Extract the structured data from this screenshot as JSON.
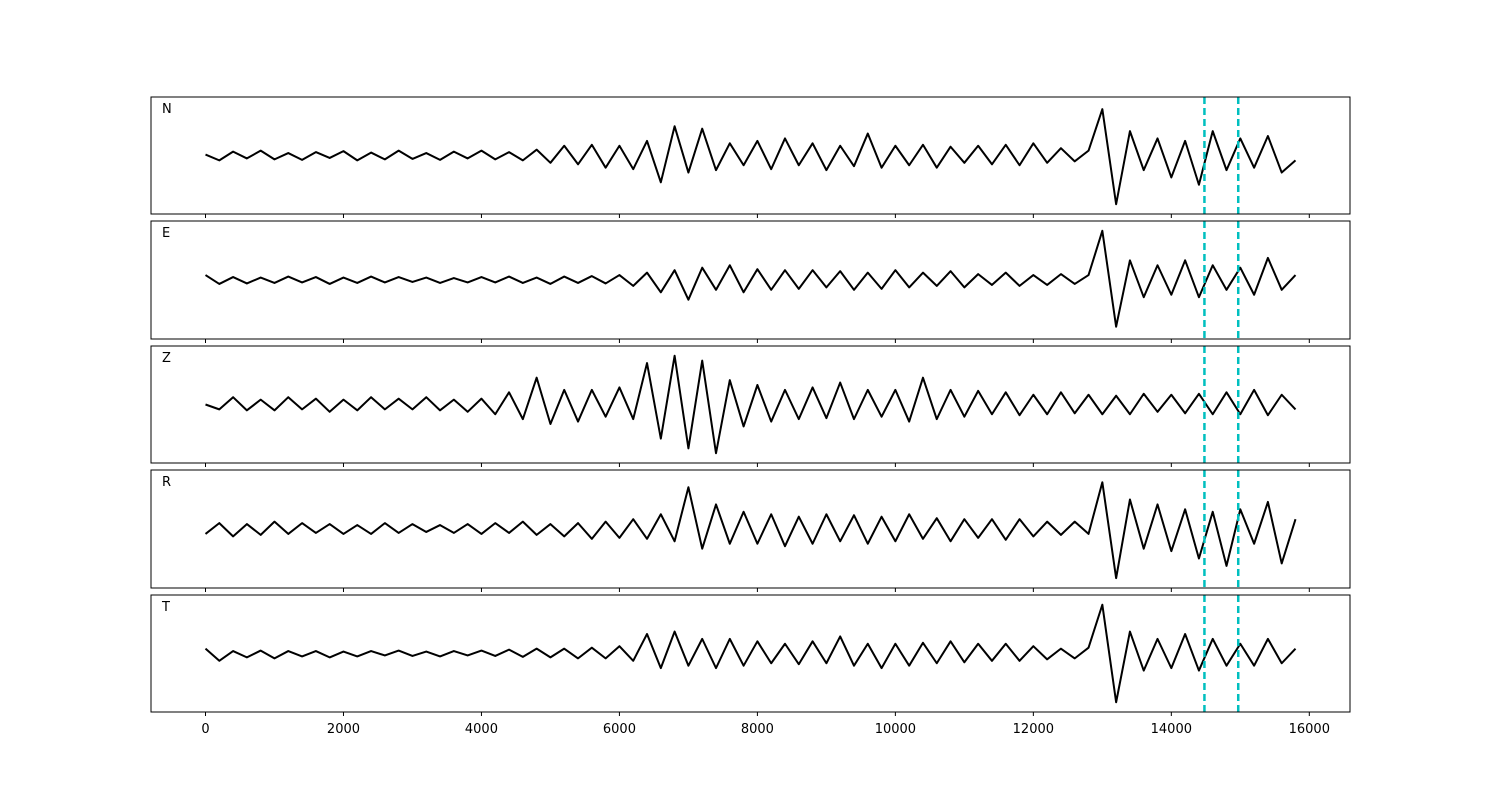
{
  "chart_data": {
    "type": "line",
    "layout": "stacked",
    "color": "#000000",
    "line_width": 2,
    "x": [
      0,
      200,
      400,
      600,
      800,
      1000,
      1200,
      1400,
      1600,
      1800,
      2000,
      2200,
      2400,
      2600,
      2800,
      3000,
      3200,
      3400,
      3600,
      3800,
      4000,
      4200,
      4400,
      4600,
      4800,
      5000,
      5200,
      5400,
      5600,
      5800,
      6000,
      6200,
      6400,
      6600,
      6800,
      7000,
      7200,
      7400,
      7600,
      7800,
      8000,
      8200,
      8400,
      8600,
      8800,
      9000,
      9200,
      9400,
      9600,
      9800,
      10000,
      10200,
      10400,
      10600,
      10800,
      11000,
      11200,
      11400,
      11600,
      11800,
      12000,
      12200,
      12400,
      12600,
      12800,
      13000,
      13200,
      13400,
      13600,
      13800,
      14000,
      14200,
      14400,
      14600,
      14800,
      15000,
      15200,
      15400,
      15600,
      15800
    ],
    "series": [
      {
        "name": "N",
        "values": [
          0.02,
          -0.1,
          0.08,
          -0.06,
          0.1,
          -0.08,
          0.05,
          -0.09,
          0.07,
          -0.05,
          0.09,
          -0.1,
          0.06,
          -0.08,
          0.1,
          -0.07,
          0.05,
          -0.09,
          0.08,
          -0.06,
          0.1,
          -0.08,
          0.07,
          -0.1,
          0.12,
          -0.15,
          0.2,
          -0.18,
          0.22,
          -0.25,
          0.2,
          -0.28,
          0.3,
          -0.55,
          0.6,
          -0.35,
          0.55,
          -0.3,
          0.25,
          -0.2,
          0.3,
          -0.28,
          0.35,
          -0.2,
          0.25,
          -0.3,
          0.2,
          -0.22,
          0.45,
          -0.25,
          0.2,
          -0.2,
          0.22,
          -0.25,
          0.18,
          -0.15,
          0.2,
          -0.18,
          0.22,
          -0.2,
          0.25,
          -0.15,
          0.15,
          -0.12,
          0.1,
          0.95,
          -1.0,
          0.5,
          -0.3,
          0.35,
          -0.45,
          0.3,
          -0.6,
          0.5,
          -0.3,
          0.35,
          -0.25,
          0.4,
          -0.35,
          -0.1
        ]
      },
      {
        "name": "E",
        "values": [
          0.1,
          -0.08,
          0.06,
          -0.07,
          0.05,
          -0.06,
          0.07,
          -0.05,
          0.06,
          -0.08,
          0.05,
          -0.06,
          0.07,
          -0.05,
          0.06,
          -0.04,
          0.05,
          -0.06,
          0.04,
          -0.05,
          0.06,
          -0.05,
          0.07,
          -0.06,
          0.05,
          -0.08,
          0.07,
          -0.06,
          0.08,
          -0.07,
          0.1,
          -0.12,
          0.15,
          -0.25,
          0.2,
          -0.4,
          0.25,
          -0.2,
          0.3,
          -0.25,
          0.22,
          -0.2,
          0.2,
          -0.18,
          0.2,
          -0.15,
          0.18,
          -0.2,
          0.15,
          -0.18,
          0.2,
          -0.15,
          0.15,
          -0.12,
          0.18,
          -0.15,
          0.12,
          -0.1,
          0.15,
          -0.12,
          0.1,
          -0.1,
          0.12,
          -0.08,
          0.1,
          1.0,
          -0.95,
          0.4,
          -0.35,
          0.3,
          -0.3,
          0.4,
          -0.35,
          0.3,
          -0.2,
          0.25,
          -0.3,
          0.45,
          -0.2,
          0.1
        ]
      },
      {
        "name": "Z",
        "values": [
          0.0,
          -0.1,
          0.15,
          -0.12,
          0.1,
          -0.12,
          0.15,
          -0.1,
          0.12,
          -0.15,
          0.1,
          -0.12,
          0.15,
          -0.1,
          0.12,
          -0.1,
          0.15,
          -0.12,
          0.1,
          -0.15,
          0.12,
          -0.2,
          0.25,
          -0.3,
          0.55,
          -0.4,
          0.3,
          -0.35,
          0.3,
          -0.25,
          0.35,
          -0.3,
          0.85,
          -0.7,
          1.0,
          -0.9,
          0.9,
          -1.0,
          0.5,
          -0.45,
          0.4,
          -0.35,
          0.3,
          -0.3,
          0.35,
          -0.28,
          0.45,
          -0.3,
          0.3,
          -0.25,
          0.3,
          -0.35,
          0.55,
          -0.3,
          0.3,
          -0.25,
          0.28,
          -0.2,
          0.25,
          -0.22,
          0.2,
          -0.2,
          0.25,
          -0.18,
          0.2,
          -0.2,
          0.18,
          -0.2,
          0.22,
          -0.15,
          0.2,
          -0.18,
          0.22,
          -0.2,
          0.25,
          -0.2,
          0.3,
          -0.22,
          0.2,
          -0.1
        ]
      },
      {
        "name": "R",
        "values": [
          -0.1,
          0.12,
          -0.15,
          0.1,
          -0.12,
          0.15,
          -0.1,
          0.12,
          -0.08,
          0.1,
          -0.1,
          0.08,
          -0.1,
          0.12,
          -0.08,
          0.1,
          -0.06,
          0.08,
          -0.08,
          0.1,
          -0.1,
          0.12,
          -0.08,
          0.15,
          -0.12,
          0.1,
          -0.15,
          0.12,
          -0.2,
          0.15,
          -0.18,
          0.2,
          -0.2,
          0.3,
          -0.25,
          0.85,
          -0.4,
          0.5,
          -0.3,
          0.35,
          -0.3,
          0.3,
          -0.35,
          0.25,
          -0.3,
          0.3,
          -0.25,
          0.28,
          -0.3,
          0.25,
          -0.25,
          0.3,
          -0.2,
          0.22,
          -0.25,
          0.2,
          -0.18,
          0.2,
          -0.22,
          0.2,
          -0.15,
          0.15,
          -0.12,
          0.15,
          -0.1,
          0.95,
          -1.0,
          0.6,
          -0.4,
          0.5,
          -0.45,
          0.4,
          -0.6,
          0.35,
          -0.75,
          0.4,
          -0.3,
          0.55,
          -0.7,
          0.2
        ]
      },
      {
        "name": "T",
        "values": [
          0.1,
          -0.15,
          0.05,
          -0.08,
          0.06,
          -0.1,
          0.05,
          -0.06,
          0.05,
          -0.08,
          0.04,
          -0.06,
          0.05,
          -0.04,
          0.06,
          -0.05,
          0.04,
          -0.06,
          0.05,
          -0.04,
          0.06,
          -0.05,
          0.08,
          -0.07,
          0.1,
          -0.08,
          0.1,
          -0.1,
          0.12,
          -0.1,
          0.15,
          -0.15,
          0.4,
          -0.3,
          0.45,
          -0.25,
          0.3,
          -0.3,
          0.3,
          -0.25,
          0.25,
          -0.2,
          0.2,
          -0.22,
          0.25,
          -0.2,
          0.35,
          -0.25,
          0.2,
          -0.3,
          0.2,
          -0.25,
          0.22,
          -0.2,
          0.25,
          -0.18,
          0.2,
          -0.15,
          0.2,
          -0.15,
          0.15,
          -0.12,
          0.1,
          -0.1,
          0.12,
          1.0,
          -1.0,
          0.45,
          -0.35,
          0.3,
          -0.3,
          0.4,
          -0.35,
          0.3,
          -0.25,
          0.2,
          -0.25,
          0.3,
          -0.2,
          0.1
        ]
      }
    ],
    "xlim": [
      -790,
      16590
    ],
    "xticks": [
      0,
      2000,
      4000,
      6000,
      8000,
      10000,
      12000,
      14000,
      16000
    ],
    "ylim": [
      -1.2,
      1.2
    ],
    "vlines": [
      14480,
      14970
    ],
    "vline_color": "#00bfbf"
  }
}
